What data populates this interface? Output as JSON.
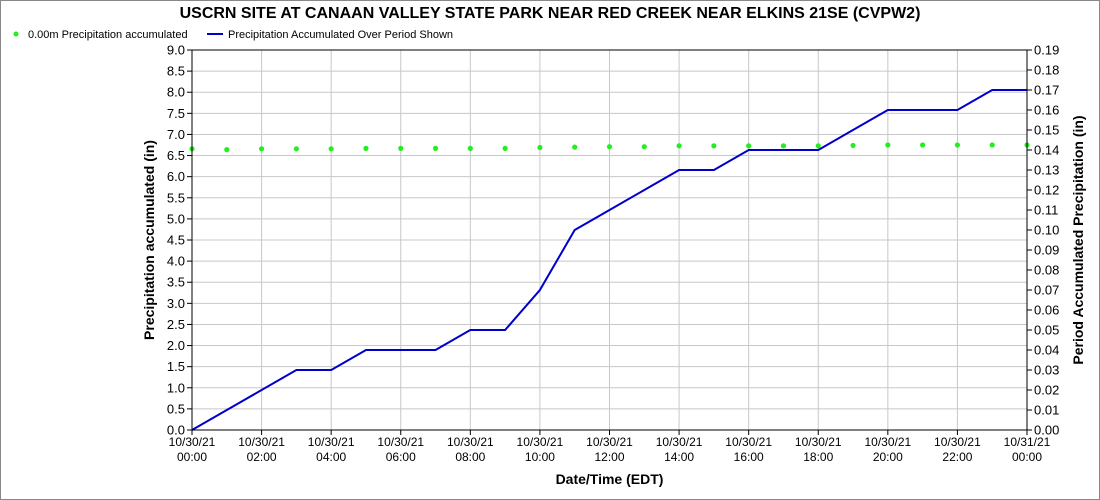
{
  "chart_data": {
    "type": "line",
    "title": "USCRN SITE AT CANAAN VALLEY STATE PARK NEAR RED CREEK NEAR ELKINS 21SE (CVPW2)",
    "xlabel": "Date/Time (EDT)",
    "ylabel": "Precipitation accumulated (in)",
    "y2label": "Period Accumulated Precipitation (in)",
    "grid": true,
    "legend_position": "top-left",
    "x_ticks": [
      {
        "date": "10/30/21",
        "time": "00:00"
      },
      {
        "date": "10/30/21",
        "time": "02:00"
      },
      {
        "date": "10/30/21",
        "time": "04:00"
      },
      {
        "date": "10/30/21",
        "time": "06:00"
      },
      {
        "date": "10/30/21",
        "time": "08:00"
      },
      {
        "date": "10/30/21",
        "time": "10:00"
      },
      {
        "date": "10/30/21",
        "time": "12:00"
      },
      {
        "date": "10/30/21",
        "time": "14:00"
      },
      {
        "date": "10/30/21",
        "time": "16:00"
      },
      {
        "date": "10/30/21",
        "time": "18:00"
      },
      {
        "date": "10/30/21",
        "time": "20:00"
      },
      {
        "date": "10/30/21",
        "time": "22:00"
      },
      {
        "date": "10/31/21",
        "time": "00:00"
      }
    ],
    "xlim": [
      "10/30/21 00:00",
      "10/31/21 00:00"
    ],
    "ylim": [
      0,
      9.0
    ],
    "y_ticks": [
      "0.0",
      "0.5",
      "1.0",
      "1.5",
      "2.0",
      "2.5",
      "3.0",
      "3.5",
      "4.0",
      "4.5",
      "5.0",
      "5.5",
      "6.0",
      "6.5",
      "7.0",
      "7.5",
      "8.0",
      "8.5",
      "9.0"
    ],
    "y2lim": [
      0,
      0.19
    ],
    "y2_ticks": [
      "0.00",
      "0.01",
      "0.02",
      "0.03",
      "0.04",
      "0.05",
      "0.06",
      "0.07",
      "0.08",
      "0.09",
      "0.10",
      "0.11",
      "0.12",
      "0.13",
      "0.14",
      "0.15",
      "0.16",
      "0.17",
      "0.18",
      "0.19"
    ],
    "series": [
      {
        "name": "0.00m Precipitation accumulated",
        "axis": "left",
        "style": "points",
        "color": "#22ee22",
        "x": [
          "10/30/21 00:00",
          "10/30/21 01:00",
          "10/30/21 02:00",
          "10/30/21 03:00",
          "10/30/21 04:00",
          "10/30/21 05:00",
          "10/30/21 06:00",
          "10/30/21 07:00",
          "10/30/21 08:00",
          "10/30/21 09:00",
          "10/30/21 10:00",
          "10/30/21 11:00",
          "10/30/21 12:00",
          "10/30/21 13:00",
          "10/30/21 14:00",
          "10/30/21 15:00",
          "10/30/21 16:00",
          "10/30/21 17:00",
          "10/30/21 18:00",
          "10/30/21 19:00",
          "10/30/21 20:00",
          "10/30/21 21:00",
          "10/30/21 22:00",
          "10/30/21 23:00",
          "10/31/21 00:00"
        ],
        "values": [
          6.66,
          6.64,
          6.66,
          6.66,
          6.66,
          6.67,
          6.67,
          6.67,
          6.67,
          6.67,
          6.69,
          6.7,
          6.71,
          6.71,
          6.73,
          6.73,
          6.73,
          6.73,
          6.73,
          6.74,
          6.75,
          6.75,
          6.75,
          6.75,
          6.75
        ]
      },
      {
        "name": "Precipitation Accumulated Over Period Shown",
        "axis": "right",
        "style": "line",
        "color": "#0000cc",
        "x": [
          "10/30/21 00:00",
          "10/30/21 01:00",
          "10/30/21 02:00",
          "10/30/21 03:00",
          "10/30/21 04:00",
          "10/30/21 05:00",
          "10/30/21 06:00",
          "10/30/21 07:00",
          "10/30/21 08:00",
          "10/30/21 09:00",
          "10/30/21 10:00",
          "10/30/21 11:00",
          "10/30/21 12:00",
          "10/30/21 13:00",
          "10/30/21 14:00",
          "10/30/21 15:00",
          "10/30/21 16:00",
          "10/30/21 17:00",
          "10/30/21 18:00",
          "10/30/21 19:00",
          "10/30/21 20:00",
          "10/30/21 21:00",
          "10/30/21 22:00",
          "10/30/21 23:00",
          "10/31/21 00:00"
        ],
        "values": [
          0.0,
          0.01,
          0.02,
          0.03,
          0.03,
          0.04,
          0.04,
          0.04,
          0.05,
          0.05,
          0.07,
          0.1,
          0.11,
          0.12,
          0.13,
          0.13,
          0.14,
          0.14,
          0.14,
          0.15,
          0.16,
          0.16,
          0.16,
          0.17,
          0.17
        ]
      }
    ]
  }
}
